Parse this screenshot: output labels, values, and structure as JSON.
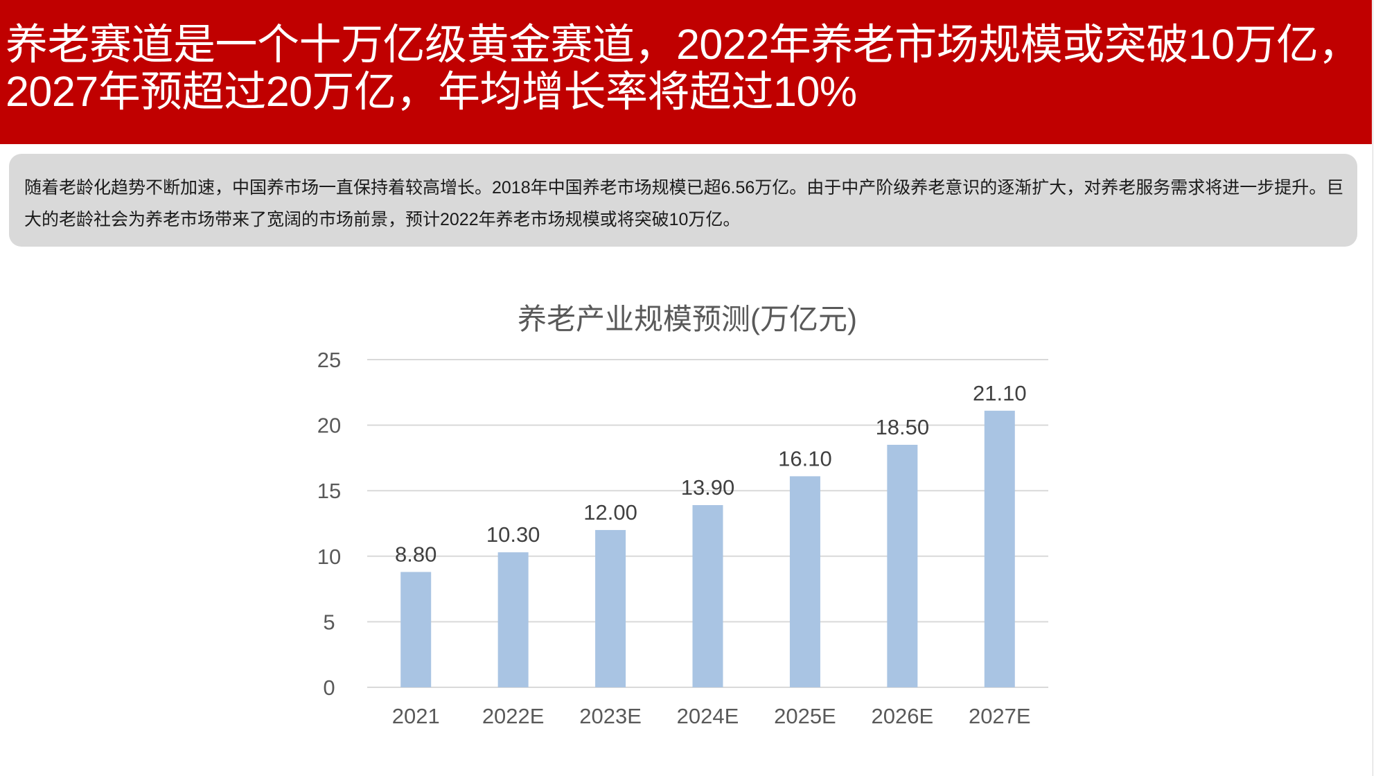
{
  "header": {
    "title": "养老赛道是一个十万亿级黄金赛道，2022年养老市场规模或突破10万亿，2027年预超过20万亿，年均增长率将超过10%"
  },
  "summary": {
    "text": "随着老龄化趋势不断加速，中国养市场一直保持着较高增长。2018年中国养老市场规模已超6.56万亿。由于中产阶级养老意识的逐渐扩大，对养老服务需求将进一步提升。巨大的老龄社会为养老市场带来了宽阔的市场前景，预计2022年养老市场规模或将突破10万亿。"
  },
  "colors": {
    "header_bg": "#c00000",
    "bar": "#a9c4e3",
    "gridline": "#d9d9d9",
    "summary_bg": "#d9d9d9"
  },
  "chart_data": {
    "type": "bar",
    "title": "养老产业规模预测(万亿元)",
    "categories": [
      "2021",
      "2022E",
      "2023E",
      "2024E",
      "2025E",
      "2026E",
      "2027E"
    ],
    "values": [
      8.8,
      10.3,
      12.0,
      13.9,
      16.1,
      18.5,
      21.1
    ],
    "data_labels": [
      "8.80",
      "10.30",
      "12.00",
      "13.90",
      "16.10",
      "18.50",
      "21.10"
    ],
    "y_ticks": [
      "0",
      "5",
      "10",
      "15",
      "20",
      "25"
    ],
    "ylim": [
      0,
      25
    ],
    "grid": true,
    "legend": "none",
    "xlabel": "",
    "ylabel": ""
  }
}
